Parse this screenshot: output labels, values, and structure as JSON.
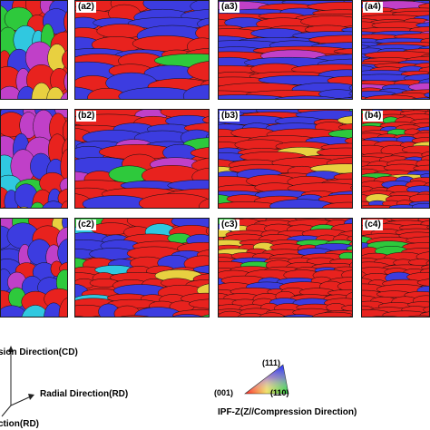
{
  "panels": {
    "a1": {
      "label": ""
    },
    "a2": {
      "label": "(a2)"
    },
    "a3": {
      "label": "(a3)"
    },
    "a4": {
      "label": "(a4)"
    },
    "b1": {
      "label": ""
    },
    "b2": {
      "label": "(b2)"
    },
    "b3": {
      "label": "(b3)"
    },
    "b4": {
      "label": "(b4)"
    },
    "c1": {
      "label": ""
    },
    "c2": {
      "label": "(c2)"
    },
    "c3": {
      "label": "(c3)"
    },
    "c4": {
      "label": "(c4)"
    }
  },
  "axes": {
    "cd_label": "sion Direction(CD)",
    "rd_label": "Radial Direction(RD)",
    "td_label": "ction(RD)"
  },
  "ipf_key": {
    "corner_111": "(111)",
    "corner_001": "(001)",
    "corner_110": "(110)",
    "title": "IPF-Z(Z//Compression Direction)"
  },
  "colors": {
    "red_001": "#e8221e",
    "blue_111": "#3c3ce0",
    "green_101": "#2ec93c",
    "magenta": "#c040c8",
    "cyan": "#30c8e0",
    "yellow": "#e8d040",
    "boundary": "#111111"
  }
}
